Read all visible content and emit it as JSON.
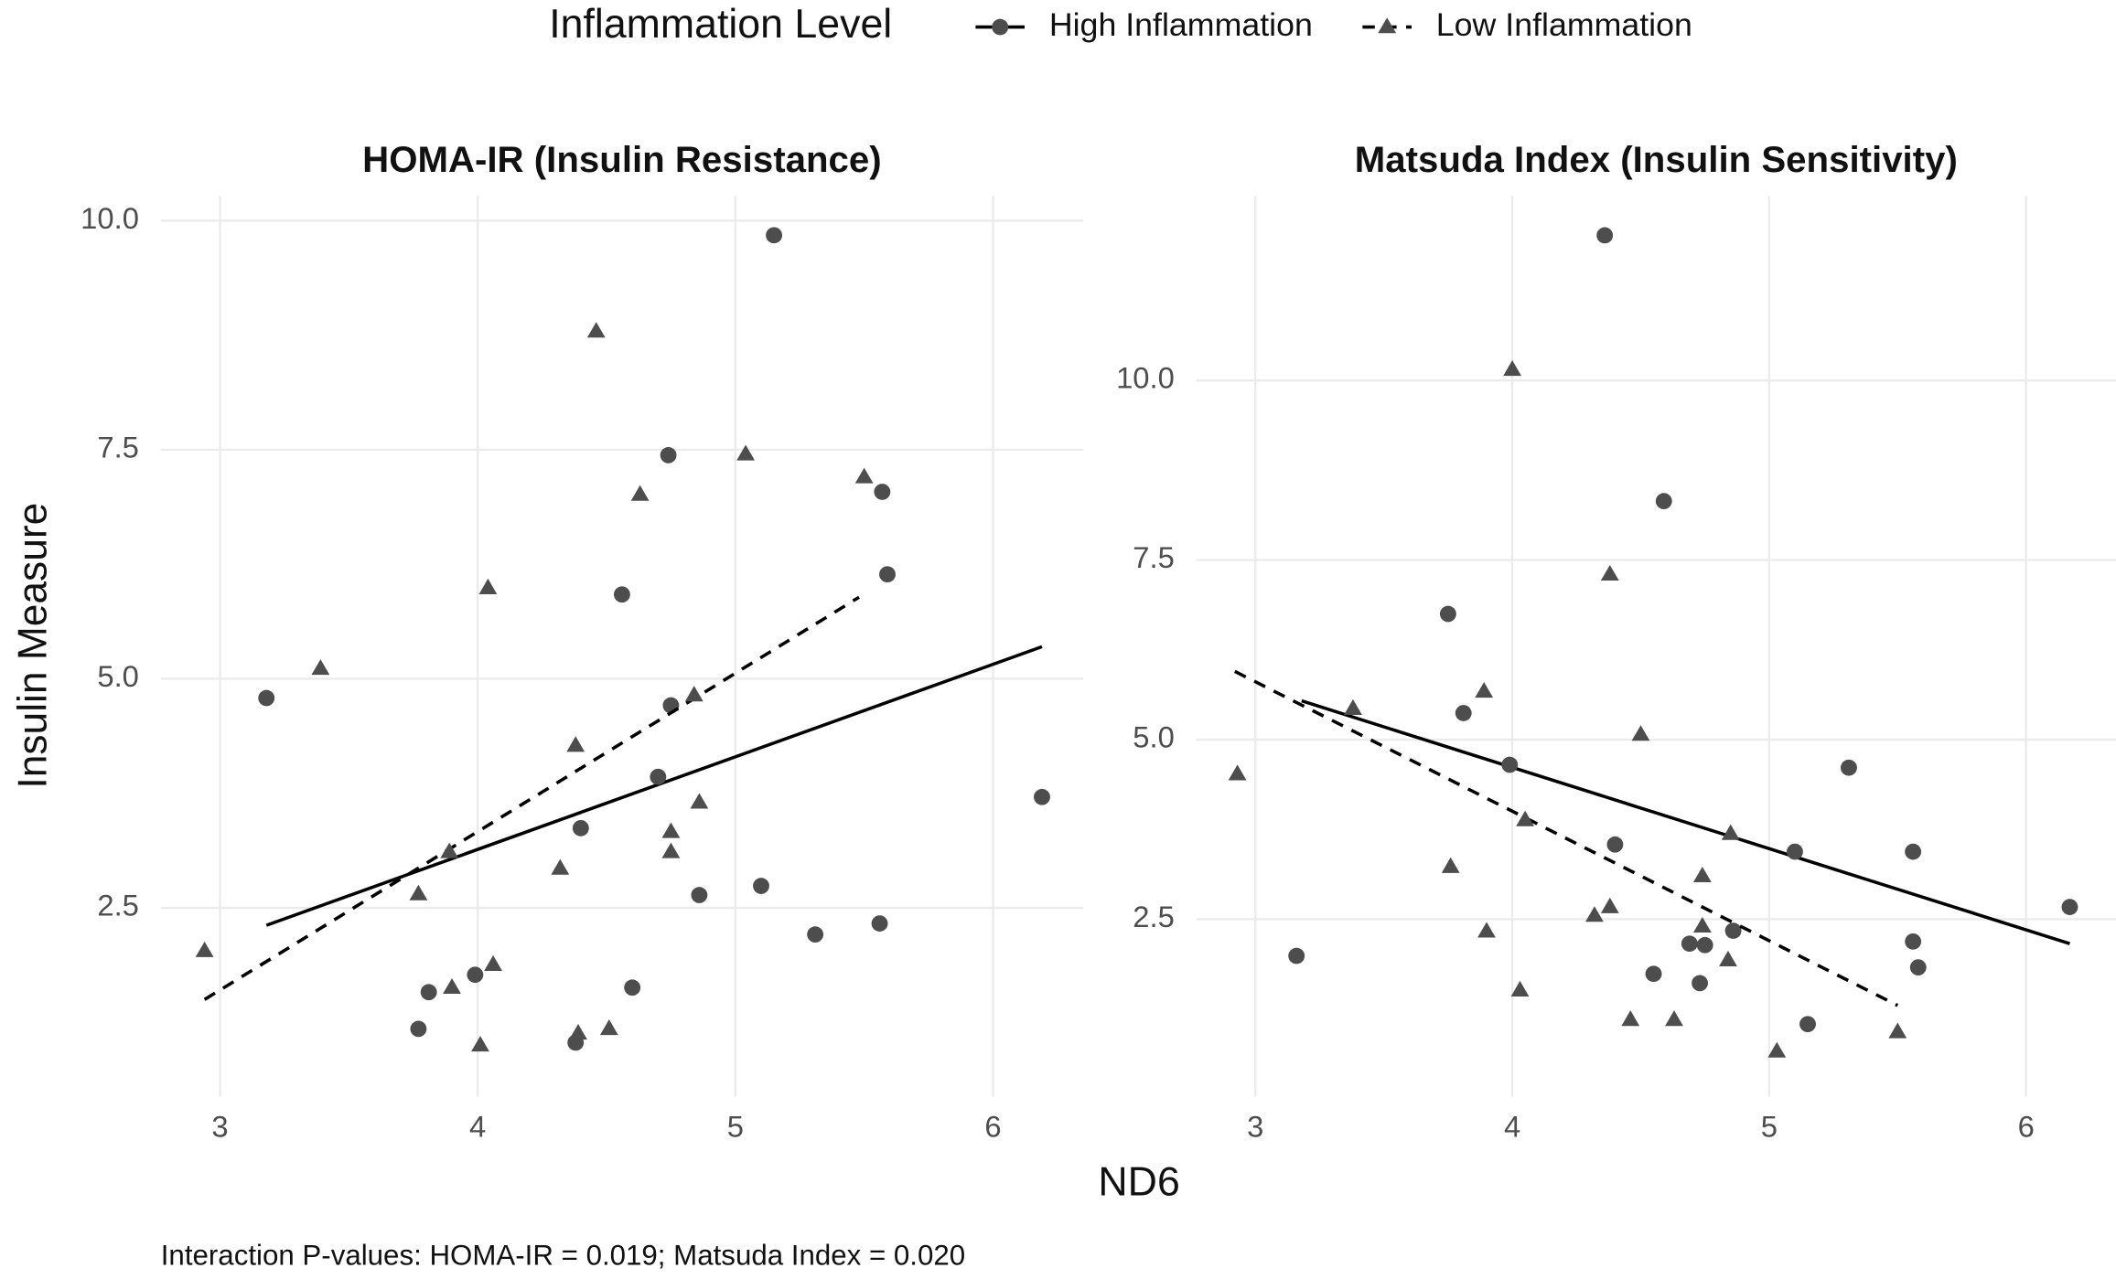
{
  "figure": {
    "legend_title": "Inflammation Level",
    "x_label": "ND6",
    "y_label": "Insulin Measure",
    "caption": "Interaction P-values: HOMA-IR = 0.019; Matsuda Index = 0.020"
  },
  "chart_data": [
    {
      "type": "scatter",
      "title": "HOMA-IR (Insulin Resistance)",
      "xlim": [
        2.77,
        6.35
      ],
      "ylim": [
        0.44,
        10.27
      ],
      "xticks": [
        3,
        4,
        5,
        6
      ],
      "yticks": [
        2.5,
        {
          "value": 5,
          "label": "5.0"
        },
        {
          "value": 7.5,
          "label": "7.5"
        },
        {
          "value": 10,
          "label": "10.0"
        }
      ],
      "grid": true,
      "series": [
        {
          "name": "High Inflammation",
          "color": "#4d4d4d",
          "shape": "circle",
          "linetype": "solid",
          "x": [
            3.18,
            5.15,
            4.74,
            5.57,
            5.59,
            4.56,
            4.75,
            4.7,
            4.4,
            6.19,
            4.86,
            5.1,
            5.31,
            5.56,
            4.6,
            3.99,
            3.81,
            3.77,
            4.38
          ],
          "values": [
            4.79,
            9.84,
            7.44,
            7.04,
            6.14,
            5.92,
            4.71,
            3.93,
            3.37,
            3.71,
            2.64,
            2.74,
            2.21,
            2.33,
            1.63,
            1.77,
            1.58,
            1.18,
            1.03
          ],
          "fit": {
            "x": [
              3.18,
              6.19
            ],
            "y": [
              2.31,
              5.35
            ]
          }
        },
        {
          "name": "Low Inflammation",
          "color": "#4d4d4d",
          "shape": "triangle",
          "linetype": "dashed",
          "x": [
            2.94,
            3.39,
            4.46,
            5.04,
            5.5,
            4.63,
            4.04,
            4.38,
            4.84,
            4.86,
            4.75,
            4.75,
            4.32,
            3.77,
            3.89,
            3.9,
            4.06,
            4.01,
            4.39,
            4.51
          ],
          "values": [
            2.03,
            5.11,
            8.79,
            7.45,
            7.2,
            7.01,
            5.99,
            4.27,
            4.82,
            3.65,
            3.33,
            3.11,
            2.93,
            2.65,
            3.11,
            1.63,
            1.88,
            1.0,
            1.13,
            1.18
          ],
          "fit": {
            "x": [
              2.94,
              5.48
            ],
            "y": [
              1.5,
              5.89
            ]
          }
        }
      ]
    },
    {
      "type": "scatter",
      "title": "Matsuda Index (Insulin Sensitivity)",
      "xlim": [
        2.77,
        6.35
      ],
      "ylim": [
        0.03,
        12.57
      ],
      "xticks": [
        3,
        4,
        5,
        6
      ],
      "yticks": [
        2.5,
        {
          "value": 5,
          "label": "5.0"
        },
        {
          "value": 7.5,
          "label": "7.5"
        },
        {
          "value": 10,
          "label": "10.0"
        }
      ],
      "grid": true,
      "series": [
        {
          "color": "#4d4d4d",
          "shape": "circle",
          "linetype": "solid",
          "x": [
            4.36,
            4.59,
            3.75,
            3.81,
            3.99,
            5.31,
            4.4,
            5.1,
            5.56,
            6.17,
            4.86,
            4.69,
            4.75,
            5.56,
            5.58,
            4.55,
            4.73,
            5.15,
            3.16
          ],
          "values": [
            12.02,
            8.32,
            6.75,
            5.37,
            4.65,
            4.61,
            3.54,
            3.44,
            3.44,
            2.67,
            2.34,
            2.16,
            2.14,
            2.19,
            1.83,
            1.74,
            1.61,
            1.04,
            1.99
          ],
          "fit": {
            "x": [
              3.18,
              6.17
            ],
            "y": [
              5.54,
              2.16
            ]
          }
        },
        {
          "color": "#4d4d4d",
          "shape": "triangle",
          "linetype": "dashed",
          "x": [
            2.93,
            4.0,
            4.38,
            3.38,
            3.89,
            4.5,
            4.05,
            4.85,
            3.76,
            4.74,
            4.38,
            4.32,
            4.74,
            3.9,
            4.84,
            4.03,
            4.46,
            4.63,
            5.5,
            5.03
          ],
          "values": [
            4.52,
            10.15,
            7.3,
            5.43,
            5.67,
            5.07,
            3.88,
            3.69,
            3.23,
            3.1,
            2.67,
            2.55,
            2.4,
            2.33,
            1.93,
            1.51,
            1.1,
            1.1,
            0.93,
            0.66
          ],
          "fit": {
            "x": [
              2.92,
              5.5
            ],
            "y": [
              5.95,
              1.3
            ]
          }
        }
      ]
    }
  ]
}
